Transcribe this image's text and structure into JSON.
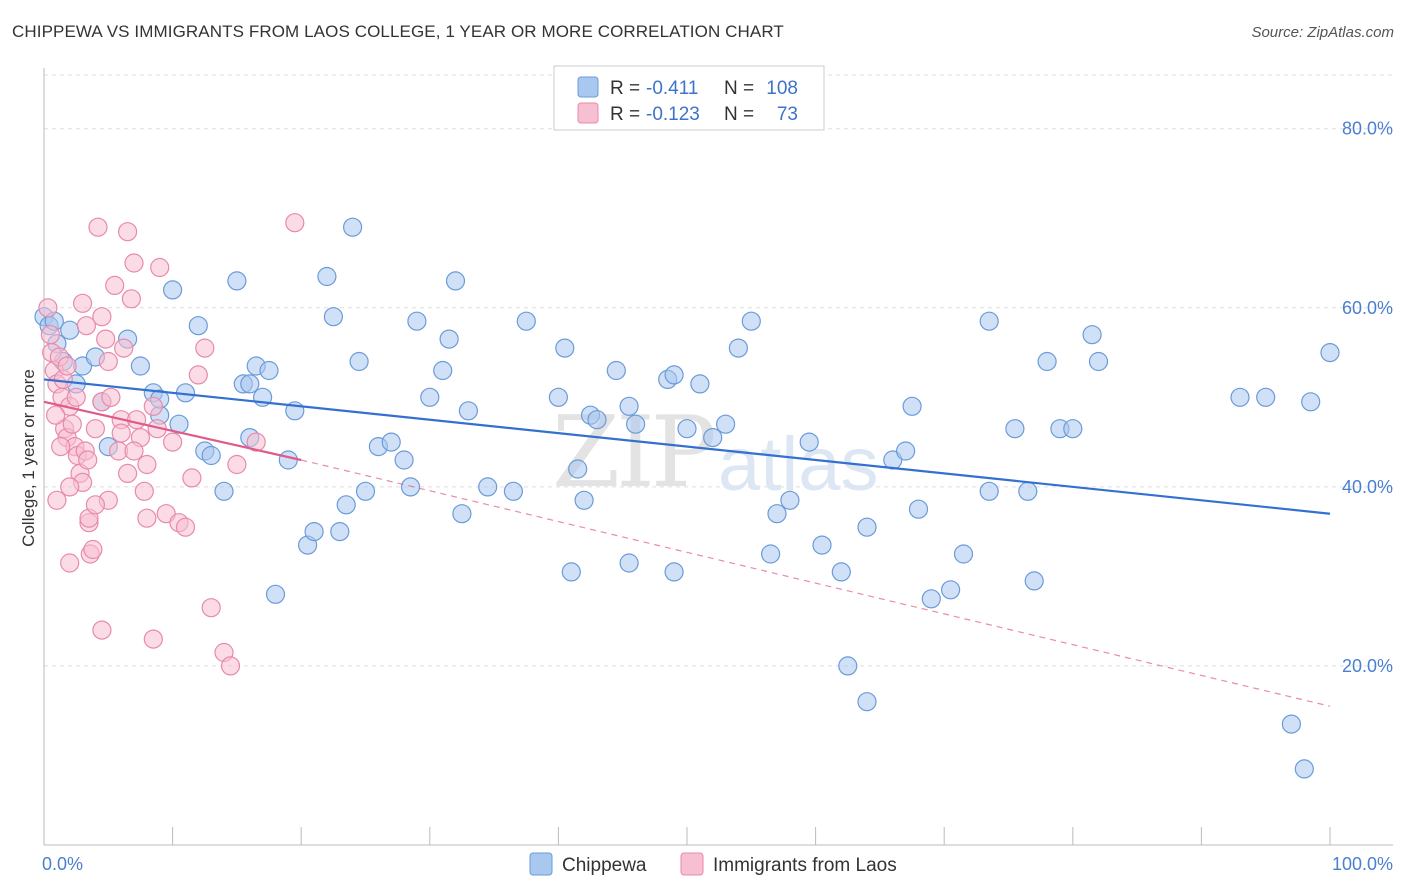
{
  "title": "CHIPPEWA VS IMMIGRANTS FROM LAOS COLLEGE, 1 YEAR OR MORE CORRELATION CHART",
  "source": "Source: ZipAtlas.com",
  "watermark": {
    "part1": "ZIP",
    "part2": "atlas"
  },
  "colors": {
    "blue_fill": "#a9c8f0",
    "blue_stroke": "#6b9bd8",
    "blue_line": "#3370d0",
    "pink_fill": "#f7bfd2",
    "pink_stroke": "#e88aaa",
    "pink_line": "#e05a8a",
    "axis_text": "#4a7fd1",
    "grid": "#dddddd"
  },
  "legend": {
    "rows": [
      {
        "r_label": "R =",
        "r_value": "-0.411",
        "n_label": "N =",
        "n_value": "108"
      },
      {
        "r_label": "R =",
        "r_value": "-0.123",
        "n_label": "N =",
        "n_value": "73"
      }
    ]
  },
  "bottom_legend": [
    "Chippewa",
    "Immigrants from Laos"
  ],
  "chart_data": {
    "type": "scatter",
    "title": "CHIPPEWA VS IMMIGRANTS FROM LAOS COLLEGE, 1 YEAR OR MORE CORRELATION CHART",
    "xlabel": "",
    "ylabel": "College, 1 year or more",
    "xlim": [
      0,
      100
    ],
    "ylim": [
      0,
      86
    ],
    "x_tick_labels": [
      "0.0%",
      "100.0%"
    ],
    "y_ticks": [
      20,
      40,
      60,
      80
    ],
    "y_tick_labels": [
      "20.0%",
      "40.0%",
      "60.0%",
      "80.0%"
    ],
    "grid": true,
    "legend_position": "top-center",
    "series": [
      {
        "name": "Chippewa",
        "r": -0.411,
        "n": 108,
        "trend": {
          "x": [
            0,
            100
          ],
          "y": [
            52.0,
            37.0
          ],
          "style": "solid"
        },
        "points": [
          [
            0.0,
            59.0
          ],
          [
            0.4,
            58.0
          ],
          [
            0.8,
            58.5
          ],
          [
            1.0,
            56.0
          ],
          [
            1.5,
            54.0
          ],
          [
            2.0,
            57.5
          ],
          [
            2.5,
            51.5
          ],
          [
            3.0,
            53.5
          ],
          [
            4.0,
            54.5
          ],
          [
            4.5,
            49.5
          ],
          [
            5.0,
            44.5
          ],
          [
            6.5,
            56.5
          ],
          [
            7.5,
            53.5
          ],
          [
            8.5,
            50.5
          ],
          [
            9.0,
            48.0
          ],
          [
            9.0,
            49.8
          ],
          [
            10.0,
            62.0
          ],
          [
            10.5,
            47.0
          ],
          [
            11.0,
            50.5
          ],
          [
            12.0,
            58.0
          ],
          [
            12.5,
            44.0
          ],
          [
            13.0,
            43.5
          ],
          [
            14.0,
            39.5
          ],
          [
            15.0,
            63.0
          ],
          [
            15.5,
            51.5
          ],
          [
            16.5,
            53.5
          ],
          [
            16.0,
            45.5
          ],
          [
            17.0,
            50.0
          ],
          [
            17.5,
            53.0
          ],
          [
            16.0,
            51.5
          ],
          [
            18.0,
            28.0
          ],
          [
            19.0,
            43.0
          ],
          [
            19.5,
            48.5
          ],
          [
            20.5,
            33.5
          ],
          [
            21.0,
            35.0
          ],
          [
            22.0,
            63.5
          ],
          [
            22.5,
            59.0
          ],
          [
            23.5,
            38.0
          ],
          [
            23.0,
            35.0
          ],
          [
            24.0,
            69.0
          ],
          [
            24.5,
            54.0
          ],
          [
            25.0,
            39.5
          ],
          [
            26.0,
            44.5
          ],
          [
            27.0,
            45.0
          ],
          [
            28.0,
            43.0
          ],
          [
            28.5,
            40.0
          ],
          [
            29.0,
            58.5
          ],
          [
            30.0,
            50.0
          ],
          [
            31.0,
            53.0
          ],
          [
            31.5,
            56.5
          ],
          [
            32.0,
            63.0
          ],
          [
            32.5,
            37.0
          ],
          [
            33.0,
            48.5
          ],
          [
            34.5,
            40.0
          ],
          [
            36.5,
            39.5
          ],
          [
            37.5,
            58.5
          ],
          [
            40.0,
            50.0
          ],
          [
            40.5,
            55.5
          ],
          [
            41.0,
            30.5
          ],
          [
            41.5,
            42.0
          ],
          [
            42.0,
            38.5
          ],
          [
            42.5,
            48.0
          ],
          [
            43.0,
            47.5
          ],
          [
            44.5,
            53.0
          ],
          [
            45.5,
            31.5
          ],
          [
            45.5,
            49.0
          ],
          [
            46.0,
            47.0
          ],
          [
            48.5,
            52.0
          ],
          [
            49.0,
            52.5
          ],
          [
            49.0,
            30.5
          ],
          [
            50.0,
            46.5
          ],
          [
            51.0,
            51.5
          ],
          [
            52.0,
            45.5
          ],
          [
            53.0,
            47.0
          ],
          [
            54.0,
            55.5
          ],
          [
            55.0,
            58.5
          ],
          [
            56.5,
            32.5
          ],
          [
            57.0,
            37.0
          ],
          [
            58.0,
            38.5
          ],
          [
            59.5,
            45.0
          ],
          [
            60.5,
            33.5
          ],
          [
            62.0,
            30.5
          ],
          [
            62.5,
            20.0
          ],
          [
            64.0,
            35.5
          ],
          [
            64.0,
            16.0
          ],
          [
            66.0,
            43.0
          ],
          [
            67.0,
            44.0
          ],
          [
            67.5,
            49.0
          ],
          [
            68.0,
            37.5
          ],
          [
            69.0,
            27.5
          ],
          [
            70.5,
            28.5
          ],
          [
            71.5,
            32.5
          ],
          [
            73.5,
            39.5
          ],
          [
            73.5,
            58.5
          ],
          [
            75.5,
            46.5
          ],
          [
            76.5,
            39.5
          ],
          [
            77.0,
            29.5
          ],
          [
            78.0,
            54.0
          ],
          [
            79.0,
            46.5
          ],
          [
            80.0,
            46.5
          ],
          [
            81.5,
            57.0
          ],
          [
            82.0,
            54.0
          ],
          [
            93.0,
            50.0
          ],
          [
            95.0,
            50.0
          ],
          [
            97.0,
            13.5
          ],
          [
            98.0,
            8.5
          ],
          [
            100.0,
            55.0
          ],
          [
            98.5,
            49.5
          ]
        ]
      },
      {
        "name": "Immigrants from Laos",
        "r": -0.123,
        "n": 73,
        "trend": {
          "x": [
            0,
            20
          ],
          "y": [
            49.5,
            43.0
          ],
          "style": "solid",
          "extension": {
            "x": [
              20,
              100
            ],
            "y": [
              43.0,
              15.5
            ],
            "style": "dashed"
          }
        },
        "points": [
          [
            0.3,
            60.0
          ],
          [
            0.5,
            57.0
          ],
          [
            0.6,
            55.0
          ],
          [
            0.8,
            53.0
          ],
          [
            1.0,
            51.5
          ],
          [
            1.2,
            54.5
          ],
          [
            1.4,
            50.0
          ],
          [
            1.5,
            52.0
          ],
          [
            1.6,
            46.5
          ],
          [
            1.8,
            45.5
          ],
          [
            2.0,
            49.0
          ],
          [
            2.2,
            47.0
          ],
          [
            2.4,
            44.5
          ],
          [
            2.6,
            43.5
          ],
          [
            2.8,
            41.5
          ],
          [
            3.0,
            40.5
          ],
          [
            3.0,
            60.5
          ],
          [
            3.2,
            44.0
          ],
          [
            3.4,
            43.0
          ],
          [
            3.5,
            36.0
          ],
          [
            3.6,
            32.5
          ],
          [
            3.8,
            33.0
          ],
          [
            4.0,
            46.5
          ],
          [
            4.2,
            69.0
          ],
          [
            4.5,
            59.0
          ],
          [
            4.5,
            49.5
          ],
          [
            4.8,
            56.5
          ],
          [
            5.0,
            54.0
          ],
          [
            5.2,
            50.0
          ],
          [
            5.5,
            62.5
          ],
          [
            5.8,
            44.0
          ],
          [
            6.0,
            47.5
          ],
          [
            6.2,
            55.5
          ],
          [
            6.5,
            68.5
          ],
          [
            6.8,
            61.0
          ],
          [
            7.0,
            65.0
          ],
          [
            7.2,
            47.5
          ],
          [
            7.5,
            45.5
          ],
          [
            7.8,
            39.5
          ],
          [
            8.0,
            42.5
          ],
          [
            8.0,
            36.5
          ],
          [
            8.5,
            49.0
          ],
          [
            8.8,
            46.5
          ],
          [
            9.0,
            64.5
          ],
          [
            9.5,
            37.0
          ],
          [
            10.0,
            45.0
          ],
          [
            10.5,
            36.0
          ],
          [
            11.0,
            35.5
          ],
          [
            11.5,
            41.0
          ],
          [
            12.0,
            52.5
          ],
          [
            12.5,
            55.5
          ],
          [
            13.0,
            26.5
          ],
          [
            14.0,
            21.5
          ],
          [
            14.5,
            20.0
          ],
          [
            15.0,
            42.5
          ],
          [
            16.5,
            45.0
          ],
          [
            19.5,
            69.5
          ],
          [
            2.0,
            31.5
          ],
          [
            1.0,
            38.5
          ],
          [
            3.5,
            36.5
          ],
          [
            4.5,
            24.0
          ],
          [
            5.0,
            38.5
          ],
          [
            6.0,
            46.0
          ],
          [
            7.0,
            44.0
          ],
          [
            2.5,
            50.0
          ],
          [
            1.8,
            53.5
          ],
          [
            0.9,
            48.0
          ],
          [
            3.3,
            58.0
          ],
          [
            8.5,
            23.0
          ],
          [
            4.0,
            38.0
          ],
          [
            6.5,
            41.5
          ],
          [
            2.0,
            40.0
          ],
          [
            1.3,
            44.5
          ]
        ]
      }
    ]
  }
}
